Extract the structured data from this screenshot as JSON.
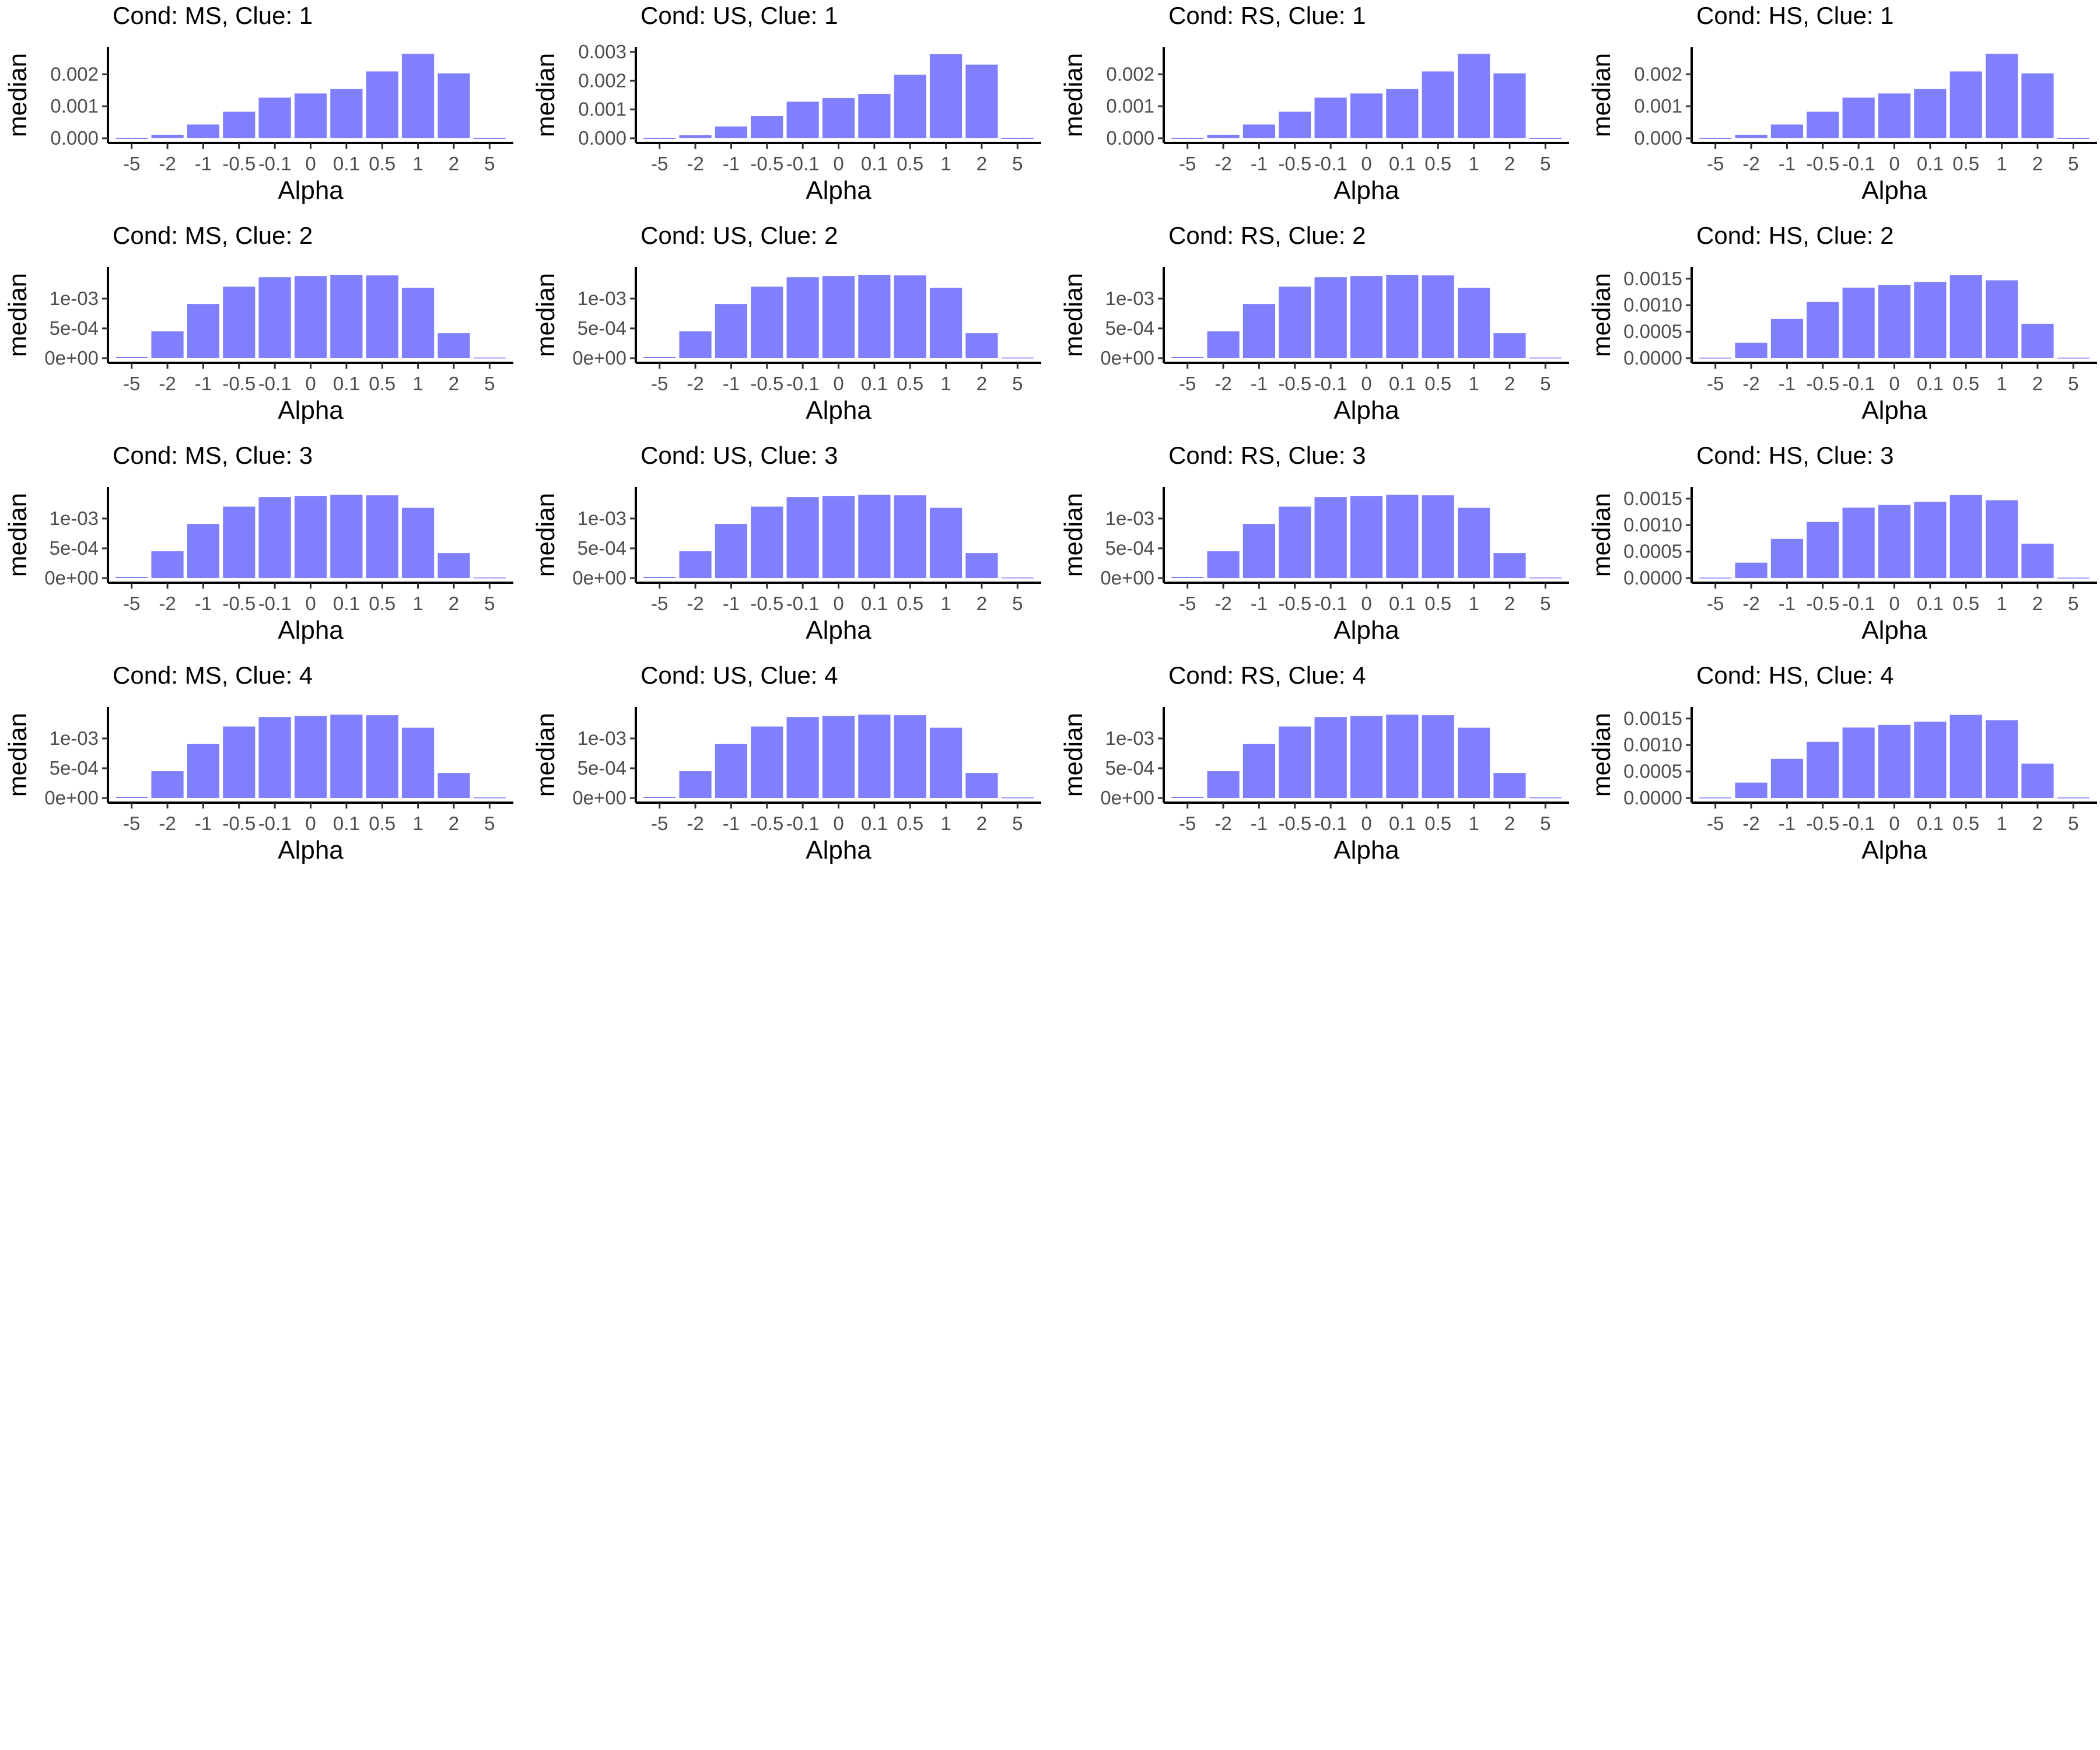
{
  "chart_data": {
    "type": "bar",
    "xlabel": "Alpha",
    "ylabel": "median",
    "bar_color": "#8080ff",
    "grid": false,
    "legend": "none",
    "categories": [
      "-5",
      "-2",
      "-1",
      "-0.5",
      "-0.1",
      "0",
      "0.1",
      "0.5",
      "1",
      "2",
      "5"
    ],
    "panels": [
      {
        "title": "Cond: MS, Clue: 1",
        "ylim": [
          0,
          0.0027
        ],
        "yticks": [
          0,
          0.001,
          0.002
        ],
        "ytick_labels": [
          "0.000",
          "0.001",
          "0.002"
        ],
        "values": [
          1e-05,
          0.00011,
          0.00043,
          0.00083,
          0.00127,
          0.0014,
          0.00154,
          0.00209,
          0.00264,
          0.00203,
          1e-05
        ]
      },
      {
        "title": "Cond: US, Clue: 1",
        "ylim": [
          0,
          0.003
        ],
        "yticks": [
          0,
          0.001,
          0.002,
          0.003
        ],
        "ytick_labels": [
          "0.000",
          "0.001",
          "0.002",
          "0.003"
        ],
        "values": [
          1e-05,
          0.00011,
          0.00041,
          0.00077,
          0.00127,
          0.0014,
          0.00154,
          0.00221,
          0.00292,
          0.00256,
          1e-05
        ]
      },
      {
        "title": "Cond: RS, Clue: 1",
        "ylim": [
          0,
          0.0027
        ],
        "yticks": [
          0,
          0.001,
          0.002
        ],
        "ytick_labels": [
          "0.000",
          "0.001",
          "0.002"
        ],
        "values": [
          1e-05,
          0.00011,
          0.00043,
          0.00083,
          0.00127,
          0.0014,
          0.00154,
          0.00209,
          0.00264,
          0.00203,
          1e-05
        ]
      },
      {
        "title": "Cond: HS, Clue: 1",
        "ylim": [
          0,
          0.0027
        ],
        "yticks": [
          0,
          0.001,
          0.002
        ],
        "ytick_labels": [
          "0.000",
          "0.001",
          "0.002"
        ],
        "values": [
          1e-05,
          0.00011,
          0.00043,
          0.00083,
          0.00127,
          0.0014,
          0.00154,
          0.00209,
          0.00264,
          0.00203,
          1e-05
        ]
      },
      {
        "title": "Cond: MS, Clue: 2",
        "ylim": [
          0,
          0.00145
        ],
        "yticks": [
          0,
          0.0005,
          0.001
        ],
        "ytick_labels": [
          "0e+00",
          "5e-04",
          "1e-03"
        ],
        "values": [
          2e-05,
          0.00045,
          0.00091,
          0.0012,
          0.00136,
          0.00138,
          0.0014,
          0.00139,
          0.00118,
          0.00042,
          1e-05
        ]
      },
      {
        "title": "Cond: US, Clue: 2",
        "ylim": [
          0,
          0.00145
        ],
        "yticks": [
          0,
          0.0005,
          0.001
        ],
        "ytick_labels": [
          "0e+00",
          "5e-04",
          "1e-03"
        ],
        "values": [
          2e-05,
          0.00045,
          0.00091,
          0.0012,
          0.00136,
          0.00138,
          0.0014,
          0.00139,
          0.00118,
          0.00042,
          1e-05
        ]
      },
      {
        "title": "Cond: RS, Clue: 2",
        "ylim": [
          0,
          0.00145
        ],
        "yticks": [
          0,
          0.0005,
          0.001
        ],
        "ytick_labels": [
          "0e+00",
          "5e-04",
          "1e-03"
        ],
        "values": [
          2e-05,
          0.00045,
          0.00091,
          0.0012,
          0.00136,
          0.00138,
          0.0014,
          0.00139,
          0.00118,
          0.00042,
          1e-05
        ]
      },
      {
        "title": "Cond: HS, Clue: 2",
        "ylim": [
          0,
          0.00163
        ],
        "yticks": [
          0,
          0.0005,
          0.001,
          0.0015
        ],
        "ytick_labels": [
          "0.0000",
          "0.0005",
          "0.0010",
          "0.0015"
        ],
        "values": [
          1e-05,
          0.00029,
          0.00074,
          0.00106,
          0.00133,
          0.00138,
          0.00144,
          0.00157,
          0.00147,
          0.00065,
          1e-05
        ]
      },
      {
        "title": "Cond: MS, Clue: 3",
        "ylim": [
          0,
          0.00145
        ],
        "yticks": [
          0,
          0.0005,
          0.001
        ],
        "ytick_labels": [
          "0e+00",
          "5e-04",
          "1e-03"
        ],
        "values": [
          2e-05,
          0.00045,
          0.00091,
          0.0012,
          0.00136,
          0.00138,
          0.0014,
          0.00139,
          0.00118,
          0.00042,
          1e-05
        ]
      },
      {
        "title": "Cond: US, Clue: 3",
        "ylim": [
          0,
          0.00145
        ],
        "yticks": [
          0,
          0.0005,
          0.001
        ],
        "ytick_labels": [
          "0e+00",
          "5e-04",
          "1e-03"
        ],
        "values": [
          2e-05,
          0.00045,
          0.00091,
          0.0012,
          0.00136,
          0.00138,
          0.0014,
          0.00139,
          0.00118,
          0.00042,
          1e-05
        ]
      },
      {
        "title": "Cond: RS, Clue: 3",
        "ylim": [
          0,
          0.00145
        ],
        "yticks": [
          0,
          0.0005,
          0.001
        ],
        "ytick_labels": [
          "0e+00",
          "5e-04",
          "1e-03"
        ],
        "values": [
          2e-05,
          0.00045,
          0.00091,
          0.0012,
          0.00136,
          0.00138,
          0.0014,
          0.00139,
          0.00118,
          0.00042,
          1e-05
        ]
      },
      {
        "title": "Cond: HS, Clue: 3",
        "ylim": [
          0,
          0.00163
        ],
        "yticks": [
          0,
          0.0005,
          0.001,
          0.0015
        ],
        "ytick_labels": [
          "0.0000",
          "0.0005",
          "0.0010",
          "0.0015"
        ],
        "values": [
          1e-05,
          0.00029,
          0.00074,
          0.00106,
          0.00133,
          0.00138,
          0.00144,
          0.00157,
          0.00147,
          0.00065,
          1e-05
        ]
      },
      {
        "title": "Cond: MS, Clue: 4",
        "ylim": [
          0,
          0.00145
        ],
        "yticks": [
          0,
          0.0005,
          0.001
        ],
        "ytick_labels": [
          "0e+00",
          "5e-04",
          "1e-03"
        ],
        "values": [
          2e-05,
          0.00045,
          0.00091,
          0.0012,
          0.00136,
          0.00138,
          0.0014,
          0.00139,
          0.00118,
          0.00042,
          1e-05
        ]
      },
      {
        "title": "Cond: US, Clue: 4",
        "ylim": [
          0,
          0.00145
        ],
        "yticks": [
          0,
          0.0005,
          0.001
        ],
        "ytick_labels": [
          "0e+00",
          "5e-04",
          "1e-03"
        ],
        "values": [
          2e-05,
          0.00045,
          0.00091,
          0.0012,
          0.00136,
          0.00138,
          0.0014,
          0.00139,
          0.00118,
          0.00042,
          1e-05
        ]
      },
      {
        "title": "Cond: RS, Clue: 4",
        "ylim": [
          0,
          0.00145
        ],
        "yticks": [
          0,
          0.0005,
          0.001
        ],
        "ytick_labels": [
          "0e+00",
          "5e-04",
          "1e-03"
        ],
        "values": [
          2e-05,
          0.00045,
          0.00091,
          0.0012,
          0.00136,
          0.00138,
          0.0014,
          0.00139,
          0.00118,
          0.00042,
          1e-05
        ]
      },
      {
        "title": "Cond: HS, Clue: 4",
        "ylim": [
          0,
          0.00163
        ],
        "yticks": [
          0,
          0.0005,
          0.001,
          0.0015
        ],
        "ytick_labels": [
          "0.0000",
          "0.0005",
          "0.0010",
          "0.0015"
        ],
        "values": [
          1e-05,
          0.00029,
          0.00074,
          0.00106,
          0.00133,
          0.00138,
          0.00144,
          0.00157,
          0.00147,
          0.00065,
          1e-05
        ]
      }
    ]
  }
}
